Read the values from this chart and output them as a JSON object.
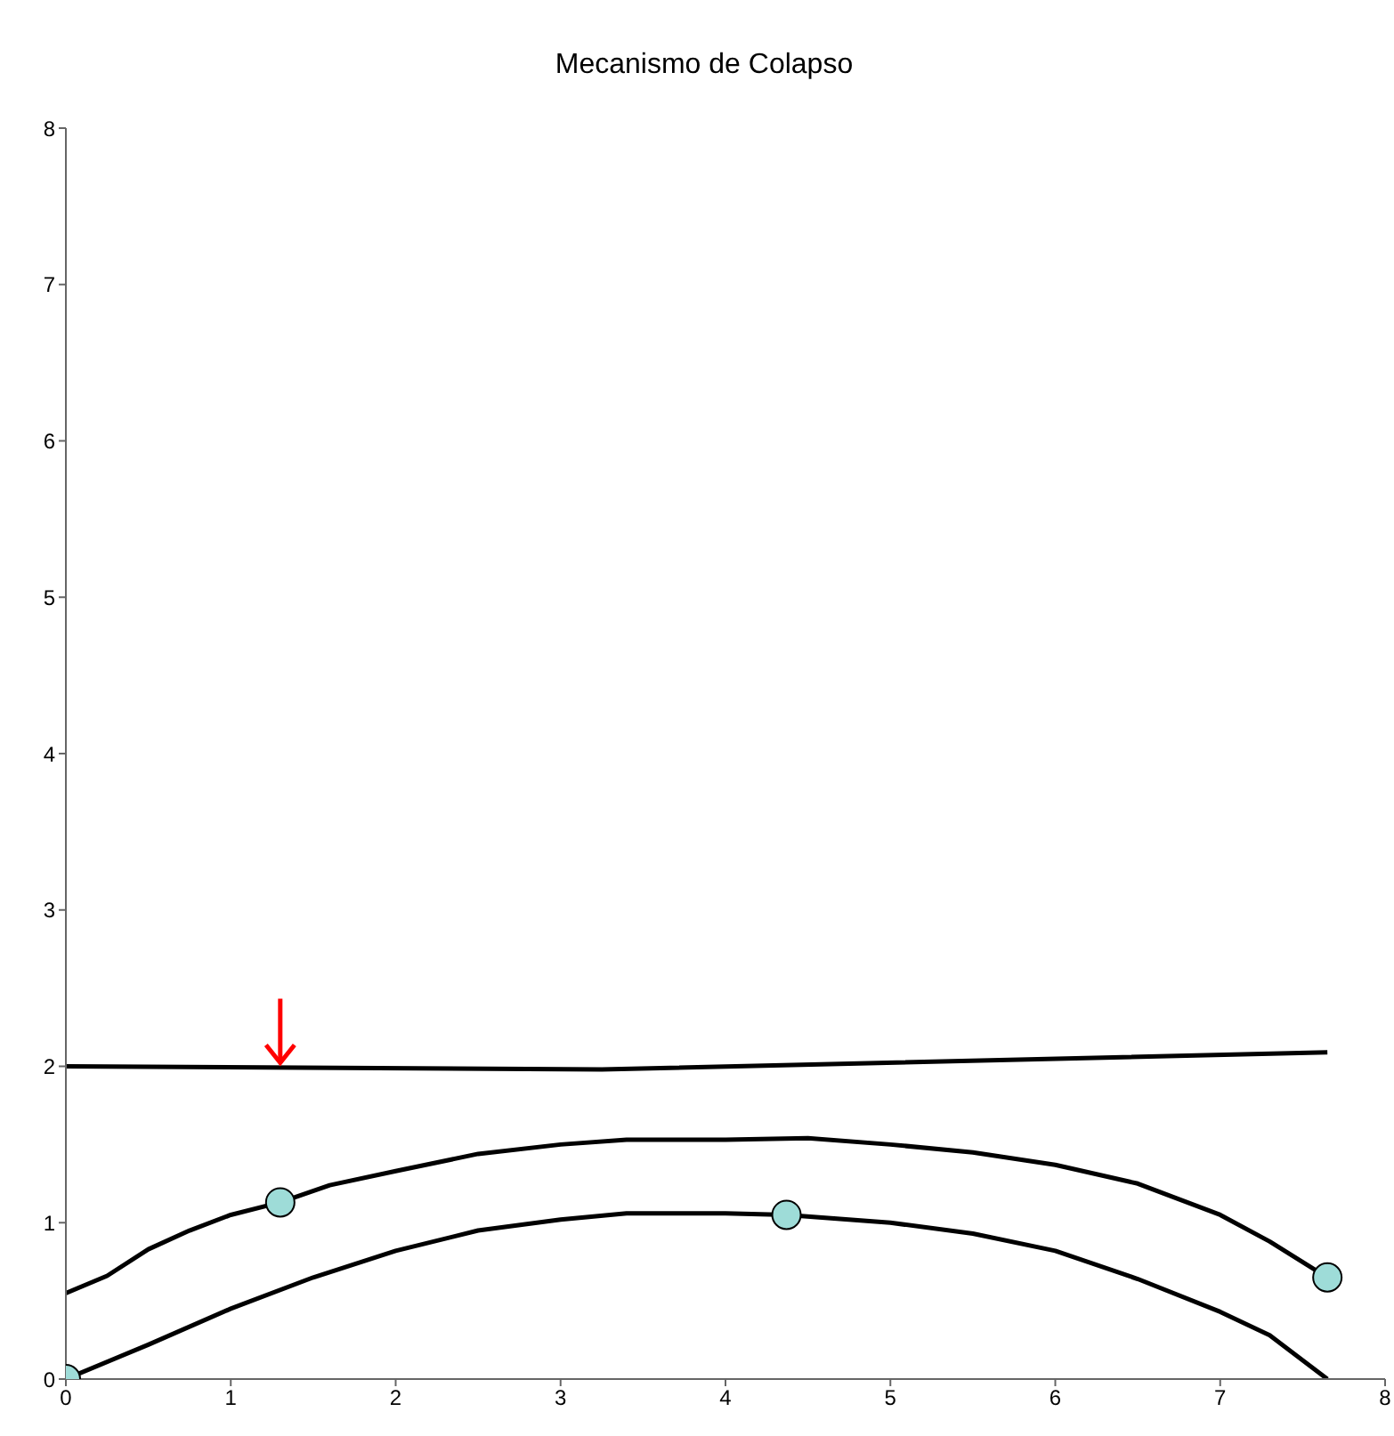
{
  "chart_data": {
    "type": "line",
    "title": "Mecanismo de Colapso",
    "xlim": [
      0,
      8
    ],
    "xticks": [
      0,
      1,
      2,
      3,
      4,
      5,
      6,
      7,
      8
    ],
    "ylim": [
      0,
      8
    ],
    "yticks": [
      0,
      1,
      2,
      3,
      4,
      5,
      6,
      7,
      8
    ],
    "series": [
      {
        "color": "#000000",
        "x": [
          0,
          3.25,
          7.65
        ],
        "values": [
          2,
          1.98,
          2.09
        ]
      },
      {
        "color": "#000000",
        "x": [
          0,
          0.25,
          0.5,
          0.75,
          1,
          1.3,
          1.6,
          2,
          2.5,
          3,
          3.4,
          4,
          4.5,
          5,
          5.5,
          6,
          6.5,
          7,
          7.3,
          7.65
        ],
        "values": [
          0.55,
          0.66,
          0.83,
          0.95,
          1.05,
          1.13,
          1.24,
          1.33,
          1.44,
          1.5,
          1.53,
          1.53,
          1.54,
          1.5,
          1.45,
          1.37,
          1.25,
          1.05,
          0.88,
          0.65
        ]
      },
      {
        "color": "#000000",
        "x": [
          0,
          0.5,
          1,
          1.5,
          2,
          2.5,
          3,
          3.4,
          4,
          4.37,
          5,
          5.5,
          6,
          6.5,
          7,
          7.3,
          7.65
        ],
        "values": [
          0,
          0.22,
          0.45,
          0.65,
          0.82,
          0.95,
          1.02,
          1.06,
          1.06,
          1.05,
          1.0,
          0.93,
          0.82,
          0.64,
          0.43,
          0.28,
          0
        ]
      },
      {
        "type": "scatter",
        "color": "#9edcd8",
        "marker": "circle",
        "x": [
          0,
          1.3,
          4.37,
          7.65
        ],
        "values": [
          0,
          1.13,
          1.05,
          0.65
        ]
      }
    ]
  }
}
